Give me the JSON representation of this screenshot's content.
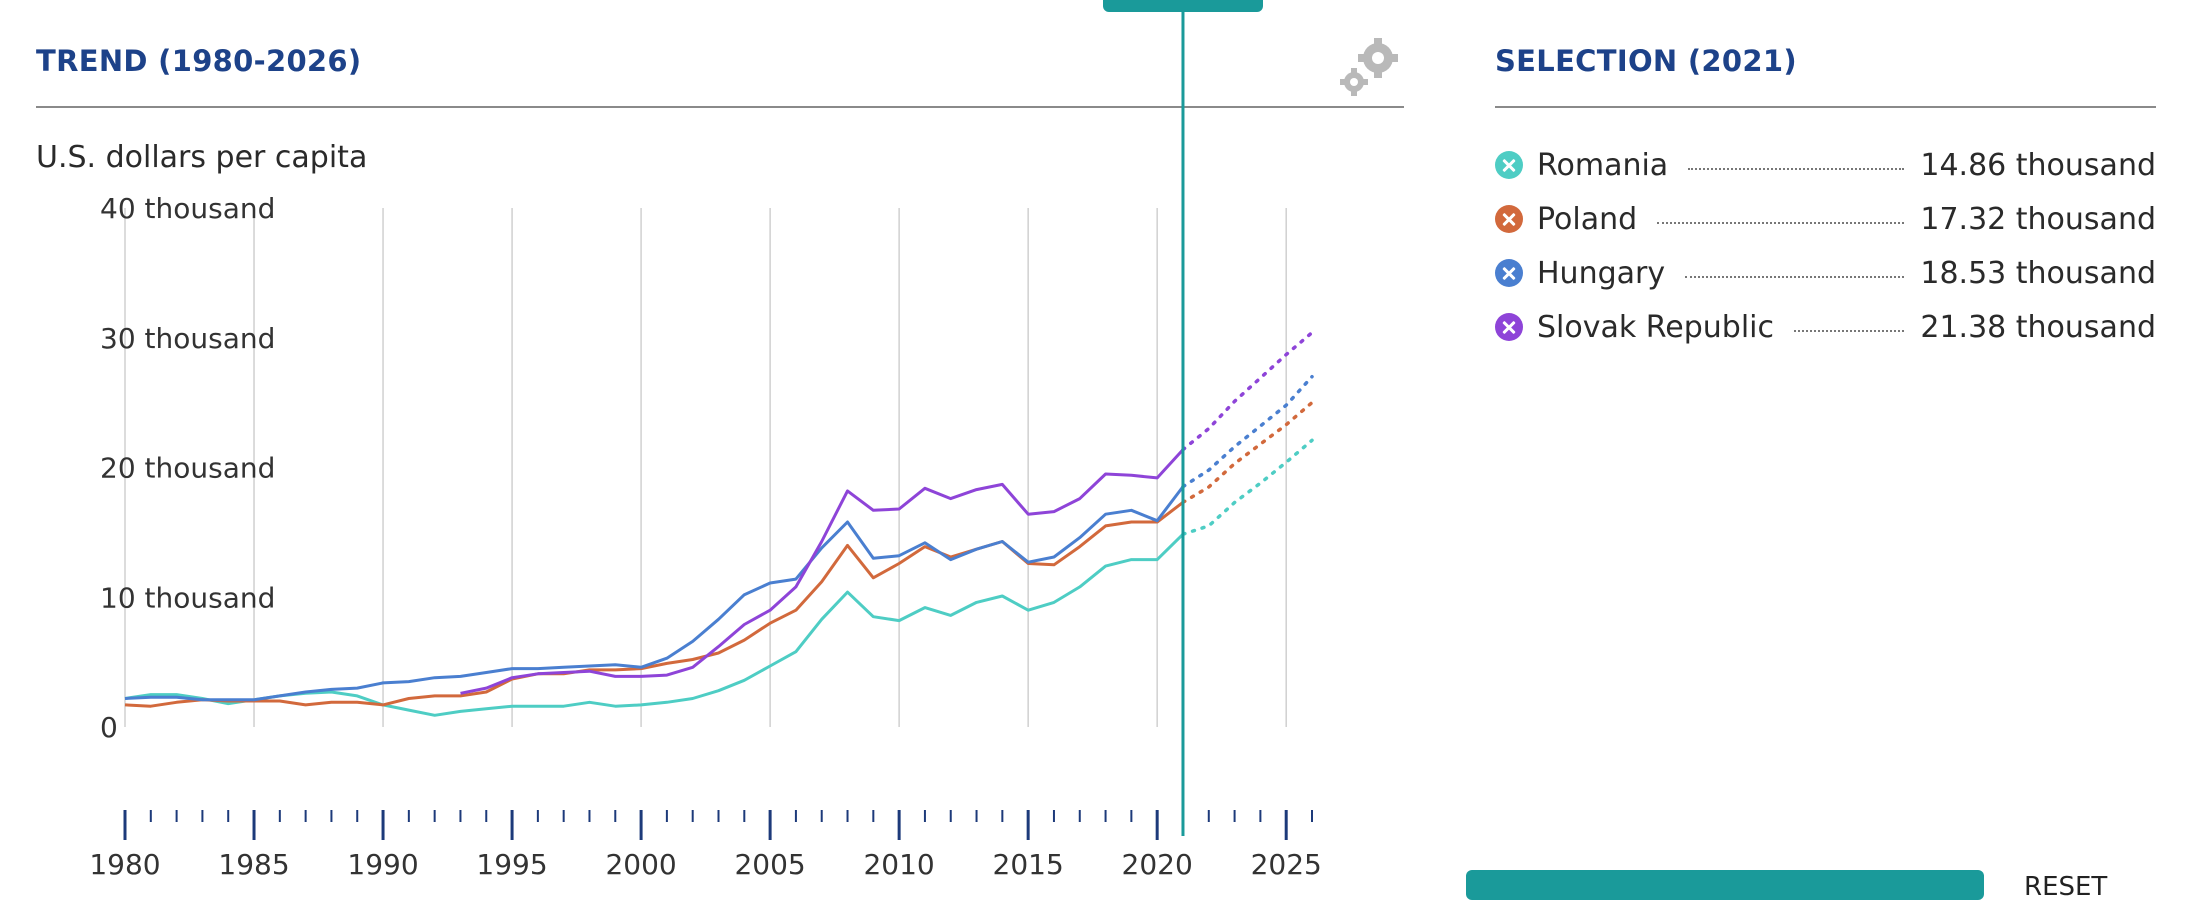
{
  "header": {
    "trend_title": "TREND (1980-2026)",
    "selection_title": "SELECTION (2021)",
    "units": "U.S. dollars per capita",
    "settings_icon": "gears-icon",
    "reset_label": "RESET"
  },
  "colors": {
    "title": "#1d4289",
    "cursor": "#1a9a9a",
    "Romania": "#4ecdc4",
    "Poland": "#d2693c",
    "Hungary": "#4a7fd0",
    "Slovak Republic": "#8e44d8"
  },
  "legend": [
    {
      "name": "Romania",
      "value": "14.86 thousand"
    },
    {
      "name": "Poland",
      "value": "17.32 thousand"
    },
    {
      "name": "Hungary",
      "value": "18.53 thousand"
    },
    {
      "name": "Slovak Republic",
      "value": "21.38 thousand"
    }
  ],
  "chart_data": {
    "type": "line",
    "title": "TREND (1980-2026)",
    "ylabel": "U.S. dollars per capita",
    "xlim": [
      1980,
      2026
    ],
    "ylim": [
      0,
      40000
    ],
    "y_ticks": [
      {
        "value": 40000,
        "label": "40 thousand"
      },
      {
        "value": 30000,
        "label": "30 thousand"
      },
      {
        "value": 20000,
        "label": "20 thousand"
      },
      {
        "value": 10000,
        "label": "10 thousand"
      },
      {
        "value": 0,
        "label": "0"
      }
    ],
    "x_ticks": [
      1980,
      1985,
      1990,
      1995,
      2000,
      2005,
      2010,
      2015,
      2020,
      2025
    ],
    "grid": "vertical",
    "selected_year": 2021,
    "projection_start": 2021,
    "series": [
      {
        "name": "Romania",
        "points": [
          [
            1980,
            2200
          ],
          [
            1981,
            2500
          ],
          [
            1982,
            2500
          ],
          [
            1983,
            2200
          ],
          [
            1984,
            1800
          ],
          [
            1985,
            2100
          ],
          [
            1986,
            2400
          ],
          [
            1987,
            2600
          ],
          [
            1988,
            2700
          ],
          [
            1989,
            2400
          ],
          [
            1990,
            1700
          ],
          [
            1991,
            1300
          ],
          [
            1992,
            900
          ],
          [
            1993,
            1200
          ],
          [
            1994,
            1400
          ],
          [
            1995,
            1600
          ],
          [
            1996,
            1600
          ],
          [
            1997,
            1600
          ],
          [
            1998,
            1900
          ],
          [
            1999,
            1600
          ],
          [
            2000,
            1700
          ],
          [
            2001,
            1900
          ],
          [
            2002,
            2200
          ],
          [
            2003,
            2800
          ],
          [
            2004,
            3600
          ],
          [
            2005,
            4700
          ],
          [
            2006,
            5800
          ],
          [
            2007,
            8300
          ],
          [
            2008,
            10400
          ],
          [
            2009,
            8500
          ],
          [
            2010,
            8200
          ],
          [
            2011,
            9200
          ],
          [
            2012,
            8600
          ],
          [
            2013,
            9600
          ],
          [
            2014,
            10100
          ],
          [
            2015,
            9000
          ],
          [
            2016,
            9600
          ],
          [
            2017,
            10800
          ],
          [
            2018,
            12400
          ],
          [
            2019,
            12900
          ],
          [
            2020,
            12900
          ],
          [
            2021,
            14860
          ],
          [
            2022,
            15500
          ],
          [
            2023,
            17300
          ],
          [
            2024,
            18800
          ],
          [
            2025,
            20400
          ],
          [
            2026,
            22100
          ]
        ]
      },
      {
        "name": "Poland",
        "points": [
          [
            1980,
            1700
          ],
          [
            1981,
            1600
          ],
          [
            1982,
            1900
          ],
          [
            1983,
            2100
          ],
          [
            1984,
            2000
          ],
          [
            1985,
            2000
          ],
          [
            1986,
            2000
          ],
          [
            1987,
            1700
          ],
          [
            1988,
            1900
          ],
          [
            1989,
            1900
          ],
          [
            1990,
            1700
          ],
          [
            1991,
            2200
          ],
          [
            1992,
            2400
          ],
          [
            1993,
            2400
          ],
          [
            1994,
            2700
          ],
          [
            1995,
            3700
          ],
          [
            1996,
            4100
          ],
          [
            1997,
            4100
          ],
          [
            1998,
            4400
          ],
          [
            1999,
            4400
          ],
          [
            2000,
            4500
          ],
          [
            2001,
            4900
          ],
          [
            2002,
            5200
          ],
          [
            2003,
            5700
          ],
          [
            2004,
            6700
          ],
          [
            2005,
            8000
          ],
          [
            2006,
            9000
          ],
          [
            2007,
            11200
          ],
          [
            2008,
            14000
          ],
          [
            2009,
            11500
          ],
          [
            2010,
            12600
          ],
          [
            2011,
            13900
          ],
          [
            2012,
            13100
          ],
          [
            2013,
            13700
          ],
          [
            2014,
            14300
          ],
          [
            2015,
            12600
          ],
          [
            2016,
            12500
          ],
          [
            2017,
            13900
          ],
          [
            2018,
            15500
          ],
          [
            2019,
            15800
          ],
          [
            2020,
            15800
          ],
          [
            2021,
            17320
          ],
          [
            2022,
            18500
          ],
          [
            2023,
            20300
          ],
          [
            2024,
            21800
          ],
          [
            2025,
            23300
          ],
          [
            2026,
            25000
          ]
        ]
      },
      {
        "name": "Hungary",
        "points": [
          [
            1980,
            2200
          ],
          [
            1981,
            2300
          ],
          [
            1982,
            2300
          ],
          [
            1983,
            2100
          ],
          [
            1984,
            2100
          ],
          [
            1985,
            2100
          ],
          [
            1986,
            2400
          ],
          [
            1987,
            2700
          ],
          [
            1988,
            2900
          ],
          [
            1989,
            3000
          ],
          [
            1990,
            3400
          ],
          [
            1991,
            3500
          ],
          [
            1992,
            3800
          ],
          [
            1993,
            3900
          ],
          [
            1994,
            4200
          ],
          [
            1995,
            4500
          ],
          [
            1996,
            4500
          ],
          [
            1997,
            4600
          ],
          [
            1998,
            4700
          ],
          [
            1999,
            4800
          ],
          [
            2000,
            4600
          ],
          [
            2001,
            5300
          ],
          [
            2002,
            6600
          ],
          [
            2003,
            8300
          ],
          [
            2004,
            10200
          ],
          [
            2005,
            11100
          ],
          [
            2006,
            11400
          ],
          [
            2007,
            13800
          ],
          [
            2008,
            15800
          ],
          [
            2009,
            13000
          ],
          [
            2010,
            13200
          ],
          [
            2011,
            14200
          ],
          [
            2012,
            12900
          ],
          [
            2013,
            13700
          ],
          [
            2014,
            14300
          ],
          [
            2015,
            12700
          ],
          [
            2016,
            13100
          ],
          [
            2017,
            14600
          ],
          [
            2018,
            16400
          ],
          [
            2019,
            16700
          ],
          [
            2020,
            15900
          ],
          [
            2021,
            18530
          ],
          [
            2022,
            19800
          ],
          [
            2023,
            21600
          ],
          [
            2024,
            23200
          ],
          [
            2025,
            24800
          ],
          [
            2026,
            27000
          ]
        ]
      },
      {
        "name": "Slovak Republic",
        "points": [
          [
            1993,
            2600
          ],
          [
            1994,
            3000
          ],
          [
            1995,
            3800
          ],
          [
            1996,
            4100
          ],
          [
            1997,
            4200
          ],
          [
            1998,
            4300
          ],
          [
            1999,
            3900
          ],
          [
            2000,
            3900
          ],
          [
            2001,
            4000
          ],
          [
            2002,
            4600
          ],
          [
            2003,
            6200
          ],
          [
            2004,
            7900
          ],
          [
            2005,
            9000
          ],
          [
            2006,
            10800
          ],
          [
            2007,
            14300
          ],
          [
            2008,
            18200
          ],
          [
            2009,
            16700
          ],
          [
            2010,
            16800
          ],
          [
            2011,
            18400
          ],
          [
            2012,
            17600
          ],
          [
            2013,
            18300
          ],
          [
            2014,
            18700
          ],
          [
            2015,
            16400
          ],
          [
            2016,
            16600
          ],
          [
            2017,
            17600
          ],
          [
            2018,
            19500
          ],
          [
            2019,
            19400
          ],
          [
            2020,
            19200
          ],
          [
            2021,
            21380
          ],
          [
            2022,
            23000
          ],
          [
            2023,
            25100
          ],
          [
            2024,
            26900
          ],
          [
            2025,
            28700
          ],
          [
            2026,
            30400
          ]
        ]
      }
    ]
  }
}
